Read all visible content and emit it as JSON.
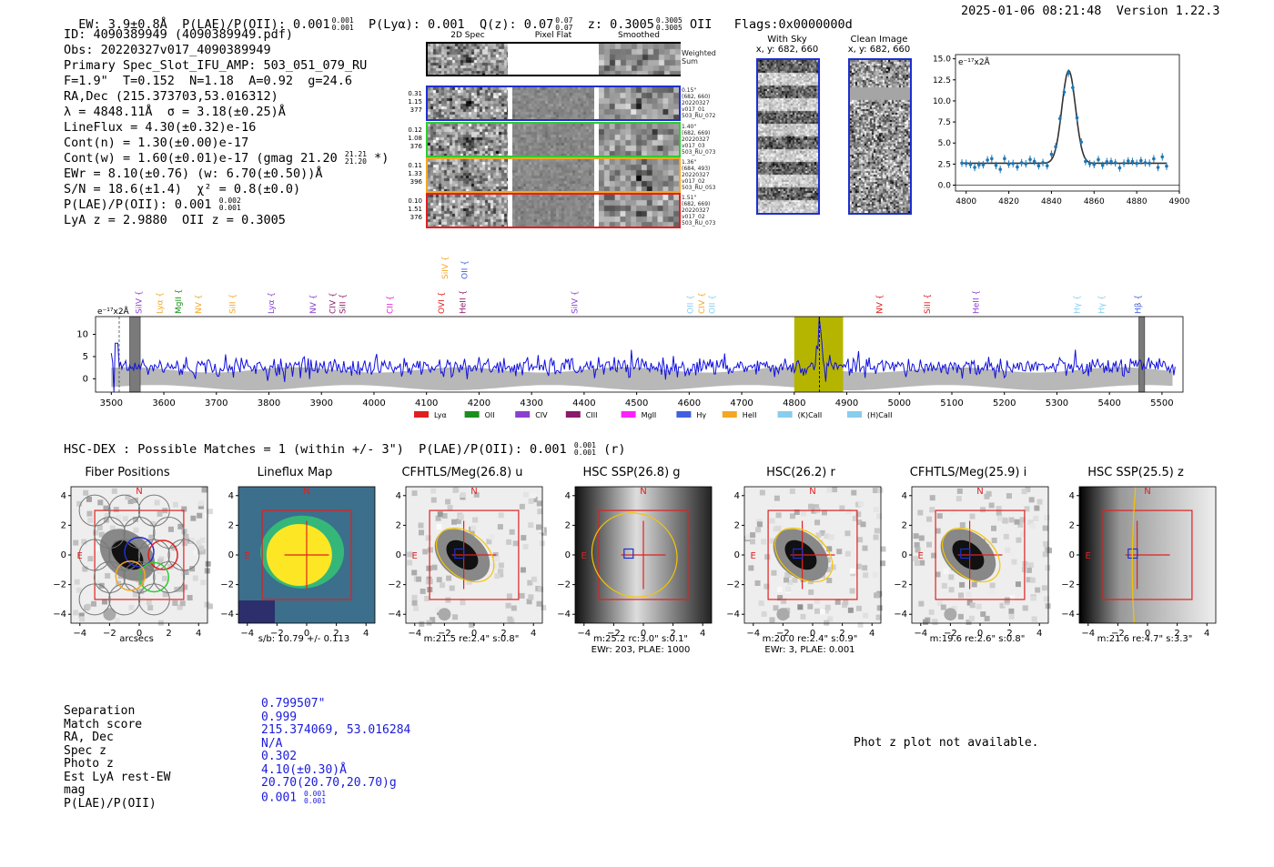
{
  "header": {
    "ew": "EW: 3.9±0.8Å",
    "plae": "P(LAE)/P(OII): 0.001",
    "plae_sup": "0.001",
    "plae_sub": "0.001",
    "plya": "P(Lyα): 0.001",
    "qz": "Q(z): 0.07",
    "qz_sup": "0.07",
    "qz_sub": "0.07",
    "z": "z: 0.3005",
    "z_sup": "0.3005",
    "z_sub": "0.3005",
    "z_line": "OII",
    "flags": "Flags:0x0000000d",
    "datetime": "2025-01-06 08:21:48",
    "version": "Version 1.22.3"
  },
  "info": {
    "id": "ID: 4090389949 (4090389949.pdf)",
    "obs": "Obs: 20220327v017_4090389949",
    "primary": "Primary Spec_Slot_IFU_AMP: 503_051_079_RU",
    "fwhm": "F=1.9\"  T=0.152  N=1.18  A=0.92  g=24.6",
    "radec": "RA,Dec (215.373703,53.016312)",
    "lambda": "λ = 4848.11Å  σ = 3.18(±0.25)Å",
    "lineflux": "LineFlux = 4.30(±0.32)e-16",
    "contn": "Cont(n) = 1.30(±0.00)e-17",
    "contw": "Cont(w) = 1.60(±0.01)e-17 (gmag 21.20",
    "contw_sup": "21.21",
    "contw_sub": "21.20",
    "contw_end": "*)",
    "ewr": "EWr = 8.10(±0.76) (w: 6.70(±0.50))Å",
    "sn": "S/N = 18.6(±1.4)  χ² = 0.8(±0.0)",
    "plae": "P(LAE)/P(OII): 0.001",
    "plae_sup": "0.002",
    "plae_sub": "0.001",
    "lyaz": "LyA z = 2.9880  OII z = 0.3005"
  },
  "cutouts": {
    "col_titles": [
      "2D Spec",
      "Pixel Flat",
      "Smoothed"
    ],
    "weighted_sum": "Weighted\nSum",
    "rows": [
      {
        "left": "0.31\n1.15\n377",
        "right": "0.15\"\n(682, 660)\n20220327\nv017_01\n503_RU_072",
        "color": "#1e2fd0"
      },
      {
        "left": "0.12\n1.08\n376",
        "right": "1.40\"\n(682, 669)\n20220327\nv017_03\n503_RU_073",
        "color": "#2ecc2e"
      },
      {
        "left": "0.11\n1.33\n396",
        "right": "1.36\"\n(684, 493)\n20220327\nv017_02\n503_RU_053",
        "color": "#f5a623"
      },
      {
        "left": "0.10\n1.51\n376",
        "right": "1.51\"\n(682, 669)\n20220327\nv017_02\n503_RU_073",
        "color": "#e02020"
      }
    ],
    "with_sky_title": "With Sky",
    "with_sky_xy": "x, y: 682, 660",
    "clean_title": "Clean Image",
    "clean_xy": "x, y: 682, 660"
  },
  "fit_chart": {
    "type": "scatter",
    "ylabel": "e⁻¹⁷x2Å",
    "xlim": [
      4795,
      4900
    ],
    "ylim": [
      -0.7,
      15.5
    ],
    "xticks": [
      "4800",
      "4820",
      "4840",
      "4860",
      "4880",
      "4900"
    ],
    "yticks": [
      "0.0",
      "2.5",
      "5.0",
      "7.5",
      "10.0",
      "12.5",
      "15.0"
    ],
    "model": {
      "continuum": 2.6,
      "amplitude": 11.0,
      "center": 4848.1,
      "sigma": 3.18
    }
  },
  "spectrum": {
    "type": "line",
    "ylabel": "e⁻¹⁷x2Å",
    "xlim": [
      3470,
      5540
    ],
    "ylim": [
      -3,
      14
    ],
    "xticks": [
      "3500",
      "3600",
      "3700",
      "3800",
      "3900",
      "4000",
      "4100",
      "4200",
      "4300",
      "4400",
      "4500",
      "4600",
      "4700",
      "4800",
      "4900",
      "5000",
      "5100",
      "5200",
      "5300",
      "5400",
      "5500"
    ],
    "yticks": [
      "0",
      "5",
      "10"
    ],
    "highlight": [
      4800,
      4893
    ],
    "line_center": 4848.1,
    "masked": [
      [
        3535,
        3555
      ],
      [
        5456,
        5467
      ]
    ],
    "lines": [
      {
        "label": "SiIV",
        "wave": 3552,
        "color": "#8a3fd0"
      },
      {
        "label": "Lyα",
        "wave": 3592,
        "color": "#f5a623"
      },
      {
        "label": "MgII",
        "wave": 3628,
        "color": "#1a8f1a"
      },
      {
        "label": "NV",
        "wave": 3666,
        "color": "#f5a623"
      },
      {
        "label": "SiII",
        "wave": 3731,
        "color": "#f5a623"
      },
      {
        "label": "Lyα",
        "wave": 3804,
        "color": "#8a3fd0"
      },
      {
        "label": "NV",
        "wave": 3884,
        "color": "#8a3fd0"
      },
      {
        "label": "CIV",
        "wave": 3921,
        "color": "#8a1a6a"
      },
      {
        "label": "SiII",
        "wave": 3940,
        "color": "#8a1a6a"
      },
      {
        "label": "CII",
        "wave": 4030,
        "color": "#e020e0"
      },
      {
        "label": "OVI",
        "wave": 4128,
        "color": "#e02020"
      },
      {
        "label": "HeII",
        "wave": 4169,
        "color": "#8a1a6a"
      },
      {
        "label": "SiIV",
        "wave": 4382,
        "color": "#8a3fd0"
      },
      {
        "label": "OII",
        "wave": 4602,
        "color": "#88ccee"
      },
      {
        "label": "CIV",
        "wave": 4624,
        "color": "#f5a623"
      },
      {
        "label": "OII",
        "wave": 4644,
        "color": "#88ccee"
      },
      {
        "label": "NV",
        "wave": 4962,
        "color": "#e02020"
      },
      {
        "label": "SiII",
        "wave": 5053,
        "color": "#e02020"
      },
      {
        "label": "HeII",
        "wave": 5146,
        "color": "#8a3fd0"
      },
      {
        "label": "Hγ",
        "wave": 5338,
        "color": "#88ccee"
      },
      {
        "label": "Hγ",
        "wave": 5385,
        "color": "#88ccee"
      },
      {
        "label": "Hβ",
        "wave": 5454,
        "color": "#4060e0"
      },
      {
        "label": "SiIV",
        "wave": 4135,
        "color": "#f5a623",
        "top": true
      },
      {
        "label": "OII",
        "wave": 4172,
        "color": "#4060e0",
        "top": true
      }
    ],
    "legend": [
      {
        "label": "Lyα",
        "color": "#e02020"
      },
      {
        "label": "OII",
        "color": "#1a8f1a"
      },
      {
        "label": "CIV",
        "color": "#8a3fd0"
      },
      {
        "label": "CIII",
        "color": "#8a1a6a"
      },
      {
        "label": "MgII",
        "color": "#ff20ff"
      },
      {
        "label": "Hγ",
        "color": "#4060e0"
      },
      {
        "label": "HeII",
        "color": "#f5a623"
      },
      {
        "label": "(K)CaII",
        "color": "#88ccee"
      },
      {
        "label": "(H)CaII",
        "color": "#88ccee"
      }
    ]
  },
  "hsc_header": {
    "text": "HSC-DEX : Possible Matches = 1 (within +/- 3\")  P(LAE)/P(OII): 0.001",
    "sup": "0.001",
    "sub": "0.001",
    "end": "(r)"
  },
  "images": {
    "ticks": [
      "−4",
      "−2",
      "0",
      "2",
      "4"
    ],
    "north": "N",
    "east": "E",
    "panels": [
      {
        "title": "Fiber Positions",
        "sub1": "arcsecs",
        "sub2": ""
      },
      {
        "title": "Lineflux Map",
        "sub1": "s/b: 10.79 +/- 0.113",
        "sub2": ""
      },
      {
        "title": "CFHTLS/Meg(26.8) u",
        "sub1": "m:21.5  re:2.4\"  s:0.8\"",
        "sub2": ""
      },
      {
        "title": "HSC SSP(26.8) g",
        "sub1": "m:25.2  rc:3.0\"  s:0.1\"",
        "sub2": "EWr: 203, PLAE: 1000"
      },
      {
        "title": "HSC(26.2) r",
        "sub1": "m:20.0  re:2.4\"  s:0.9\"",
        "sub2": "EWr: 3, PLAE: 0.001"
      },
      {
        "title": "CFHTLS/Meg(25.9) i",
        "sub1": "m:19.6  re:2.6\"  s:0.8\"",
        "sub2": ""
      },
      {
        "title": "HSC SSP(25.5) z",
        "sub1": "m:21.6  re:4.7\"  s:3.3\"",
        "sub2": ""
      }
    ]
  },
  "match_table": {
    "labels": [
      "Separation",
      "Match score",
      "RA, Dec",
      "Spec z",
      "Photo z",
      "Est LyA rest-EW",
      "mag",
      "P(LAE)/P(OII)"
    ],
    "values": [
      "0.799507\"",
      "0.999",
      "215.374069, 53.016284",
      "N/A",
      "0.302",
      "4.10(±0.30)Å",
      "20.70(20.70,20.70)g",
      "0.001"
    ],
    "plae_sup": "0.001",
    "plae_sub": "0.001"
  },
  "photz_msg": "Phot z plot not available."
}
